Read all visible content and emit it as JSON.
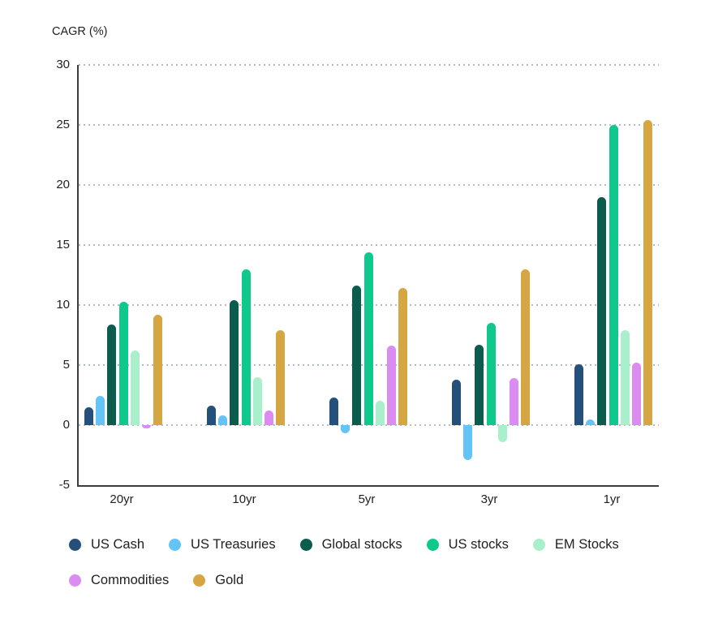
{
  "title": "CAGR (%)",
  "chart_data": {
    "type": "bar",
    "title": "CAGR (%)",
    "ylabel": "CAGR (%)",
    "xlabel": "",
    "categories": [
      "20yr",
      "10yr",
      "5yr",
      "3yr",
      "1yr"
    ],
    "series": [
      {
        "name": "US Cash",
        "color": "#25507B",
        "values": [
          1.5,
          1.6,
          2.3,
          3.8,
          5.1
        ]
      },
      {
        "name": "US Treasuries",
        "color": "#64C3F7",
        "values": [
          2.4,
          0.8,
          -0.7,
          -2.9,
          0.5
        ]
      },
      {
        "name": "Global stocks",
        "color": "#0B5C4D",
        "values": [
          8.4,
          10.4,
          11.6,
          6.7,
          19.0
        ]
      },
      {
        "name": "US stocks",
        "color": "#0FC98C",
        "values": [
          10.3,
          13.0,
          14.4,
          8.5,
          25.0
        ]
      },
      {
        "name": "EM Stocks",
        "color": "#AAEFCC",
        "values": [
          6.2,
          4.0,
          2.0,
          -1.4,
          7.9
        ]
      },
      {
        "name": "Commodities",
        "color": "#DA8CF0",
        "values": [
          -0.3,
          1.2,
          6.6,
          3.9,
          5.2
        ]
      },
      {
        "name": "Gold",
        "color": "#D5A642",
        "values": [
          9.2,
          7.9,
          11.4,
          13.0,
          25.4
        ]
      }
    ],
    "ylim": [
      -5,
      30
    ],
    "yticks": [
      30,
      25,
      20,
      15,
      10,
      5,
      0,
      -5
    ],
    "grid": "horizontal-dotted",
    "legend_position": "bottom",
    "legend_rows": [
      [
        "US Cash",
        "US Treasuries",
        "Global stocks",
        "US stocks",
        "EM Stocks"
      ],
      [
        "Commodities",
        "Gold"
      ]
    ],
    "colors": {
      "axis": "#3a3d42",
      "gridline": "#b7bdc7",
      "text": "#202124",
      "background": "#ffffff"
    }
  }
}
